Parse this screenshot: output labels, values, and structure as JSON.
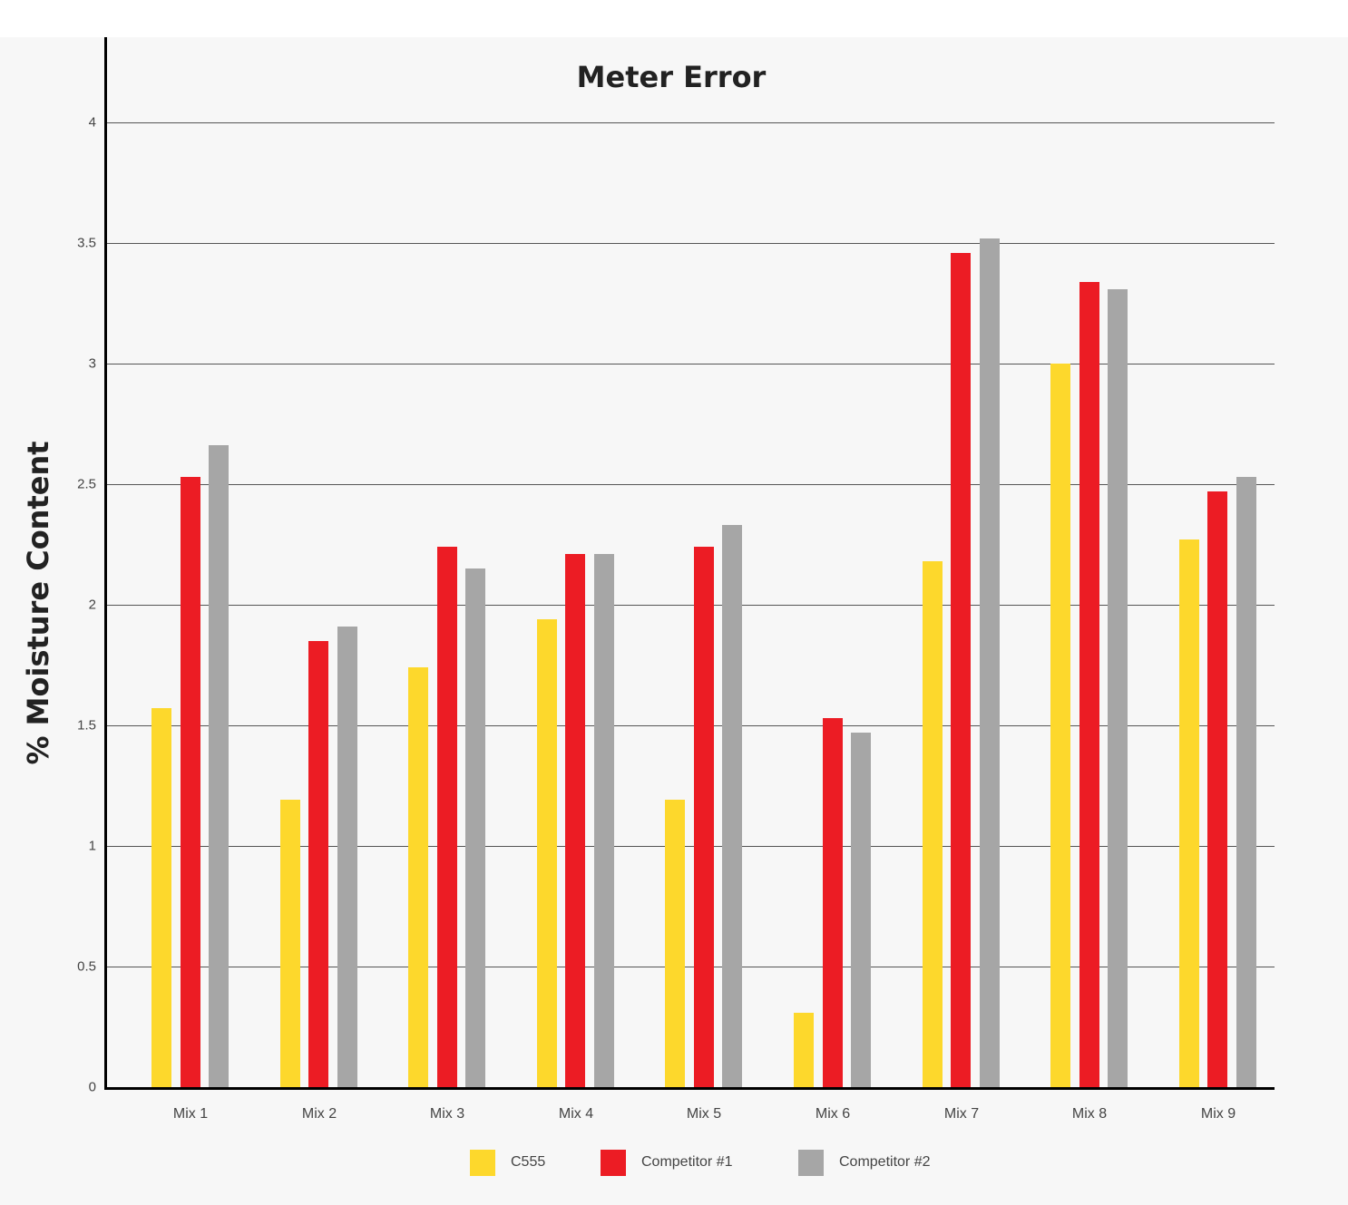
{
  "chart_data": {
    "type": "bar",
    "title": "Meter Error",
    "xlabel": "",
    "ylabel": "% Moisture Content",
    "ylim": [
      0,
      4
    ],
    "yticks": [
      "0",
      "0.5",
      "1",
      "1.5",
      "2",
      "2.5",
      "3",
      "3.5",
      "4"
    ],
    "grid": true,
    "legend_position": "bottom",
    "categories": [
      "Mix 1",
      "Mix 2",
      "Mix 3",
      "Mix 4",
      "Mix 5",
      "Mix 6",
      "Mix 7",
      "Mix 8",
      "Mix 9"
    ],
    "series": [
      {
        "name": "C555",
        "color": "#fdd82c",
        "values": [
          1.57,
          1.19,
          1.74,
          1.94,
          1.19,
          0.31,
          2.18,
          3.0,
          2.27
        ]
      },
      {
        "name": "Competitor #1",
        "color": "#ec1c24",
        "values": [
          2.53,
          1.85,
          2.24,
          2.21,
          2.24,
          1.53,
          3.46,
          3.34,
          2.47
        ]
      },
      {
        "name": "Competitor #2",
        "color": "#a6a6a6",
        "values": [
          2.66,
          1.91,
          2.15,
          2.21,
          2.33,
          1.47,
          3.52,
          3.31,
          2.53
        ]
      }
    ]
  },
  "legend": [
    {
      "label": "C555",
      "color": "#fdd82c"
    },
    {
      "label": "Competitor #1",
      "color": "#ec1c24"
    },
    {
      "label": "Competitor #2",
      "color": "#a6a6a6"
    }
  ]
}
